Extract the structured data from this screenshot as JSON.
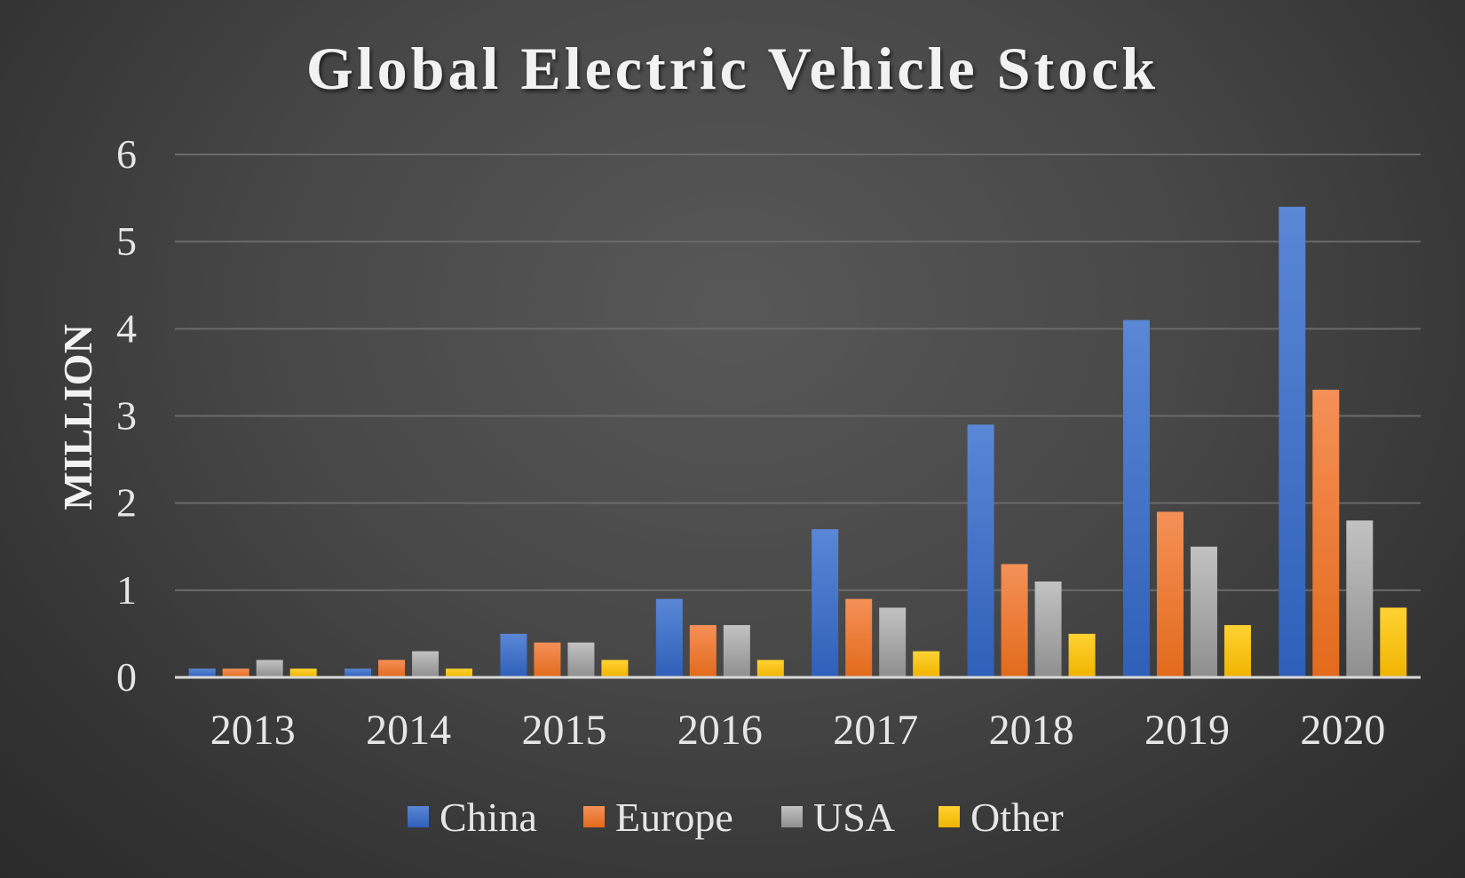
{
  "chart_data": {
    "type": "bar",
    "title": "Global Electric Vehicle Stock",
    "xlabel": "",
    "ylabel": "MILLION",
    "ylim": [
      0,
      6
    ],
    "yticks": [
      "0",
      "1",
      "2",
      "3",
      "4",
      "5",
      "6"
    ],
    "categories": [
      "2013",
      "2014",
      "2015",
      "2016",
      "2017",
      "2018",
      "2019",
      "2020"
    ],
    "series": [
      {
        "name": "China",
        "color": "#4472c4",
        "values": [
          0.1,
          0.1,
          0.5,
          0.9,
          1.7,
          2.9,
          4.1,
          5.4
        ]
      },
      {
        "name": "Europe",
        "color": "#ed7d31",
        "values": [
          0.1,
          0.2,
          0.4,
          0.6,
          0.9,
          1.3,
          1.9,
          3.3
        ]
      },
      {
        "name": "USA",
        "color": "#a5a5a5",
        "values": [
          0.2,
          0.3,
          0.4,
          0.6,
          0.8,
          1.1,
          1.5,
          1.8
        ]
      },
      {
        "name": "Other",
        "color": "#ffc000",
        "values": [
          0.1,
          0.1,
          0.2,
          0.2,
          0.3,
          0.5,
          0.6,
          0.8
        ]
      }
    ],
    "grid": true,
    "legend_position": "bottom"
  }
}
